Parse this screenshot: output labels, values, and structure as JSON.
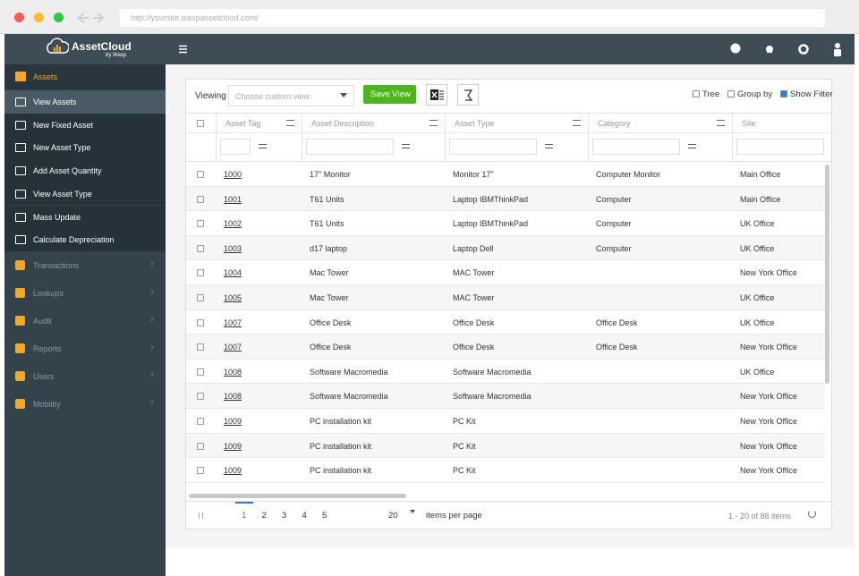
{
  "browser": {
    "url": "http://yoursite.waspassetcloud.com/"
  },
  "brand": {
    "name": "AssetCloud",
    "tagline": "by Wasp"
  },
  "sidebar": {
    "active_section": "Assets",
    "submenu": [
      "View Assets",
      "New Fixed Asset",
      "New Asset Type",
      "Add Asset Quantity",
      "View Asset Type",
      "Mass Update",
      "Calculate Depreciation"
    ],
    "sections": [
      "Transactions",
      "Lookups",
      "Audit",
      "Reports",
      "Users",
      "Mobility"
    ]
  },
  "toolbar": {
    "viewing": "Viewing",
    "placeholder": "Choose custom view",
    "save": "Save View",
    "options": [
      "Tree",
      "Group by",
      "Show Filter"
    ]
  },
  "table": {
    "columns": [
      "Asset Tag",
      "Asset Description",
      "Asset Type",
      "Category",
      "Site"
    ],
    "rows": [
      [
        "1000",
        "17\" Monitor",
        "Monitor 17\"",
        "Computer Monitor",
        "Main Office"
      ],
      [
        "1001",
        "T61 Units",
        "Laptop IBMThinkPad",
        "Computer",
        "Main Office"
      ],
      [
        "1002",
        "T61 Units",
        "Laptop IBMThinkPad",
        "Computer",
        "UK Office"
      ],
      [
        "1003",
        "d17 laptop",
        "Laptop Dell",
        "Computer",
        "UK Office"
      ],
      [
        "1004",
        "Mac Tower",
        "MAC Tower",
        null,
        "New York Office"
      ],
      [
        "1005",
        "Mac Tower",
        "MAC Tower",
        null,
        "UK Office"
      ],
      [
        "1007",
        "Office Desk",
        "Office Desk",
        "Office Desk",
        "UK Office"
      ],
      [
        "1007",
        "Office Desk",
        "Office Desk",
        "Office Desk",
        "New York Office"
      ],
      [
        "1008",
        "Software Macromedia",
        "Software Macromedia",
        null,
        "UK Office"
      ],
      [
        "1008",
        "Software Macromedia",
        "Software Macromedia",
        null,
        "New York Office"
      ],
      [
        "1009",
        "PC installation kit",
        "PC Kit",
        null,
        "New York Office"
      ],
      [
        "1009",
        "PC installation kit",
        "PC Kit",
        null,
        "New York Office"
      ],
      [
        "1009",
        "PC installation kit",
        "PC Kit",
        null,
        "New York Office"
      ]
    ]
  },
  "pager": {
    "pages": [
      1,
      2,
      3,
      4,
      5
    ],
    "page_size": 20,
    "per_page": "items per page",
    "summary": "1 - 20 of 88 items"
  }
}
